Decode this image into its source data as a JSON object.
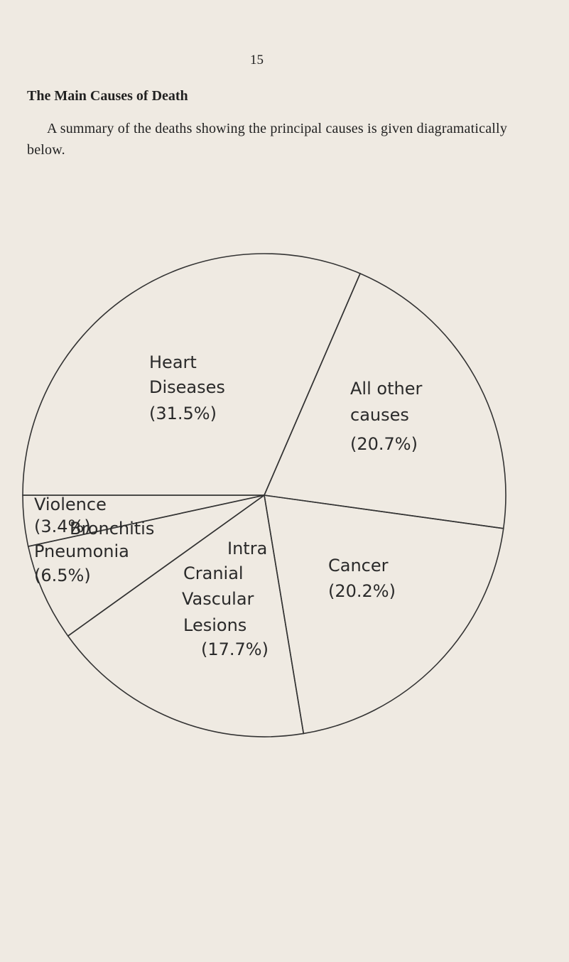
{
  "page_number": "15",
  "title": "The Main Causes of Death",
  "text": "A summary of the deaths showing the principal causes is given diagramatically below.",
  "chart_data": {
    "type": "pie",
    "categories": [
      "Heart Diseases",
      "All other causes",
      "Cancer",
      "Intra Cranial Vascular Lesions",
      "Bronchitis Pneumonia",
      "Violence"
    ],
    "values": [
      31.5,
      20.7,
      20.2,
      17.7,
      6.5,
      3.4
    ],
    "value_labels": [
      "(31.5%)",
      "(20.7%)",
      "(20.2%)",
      "(17.7%)",
      "(6.5%)",
      "(3.4%)"
    ]
  }
}
